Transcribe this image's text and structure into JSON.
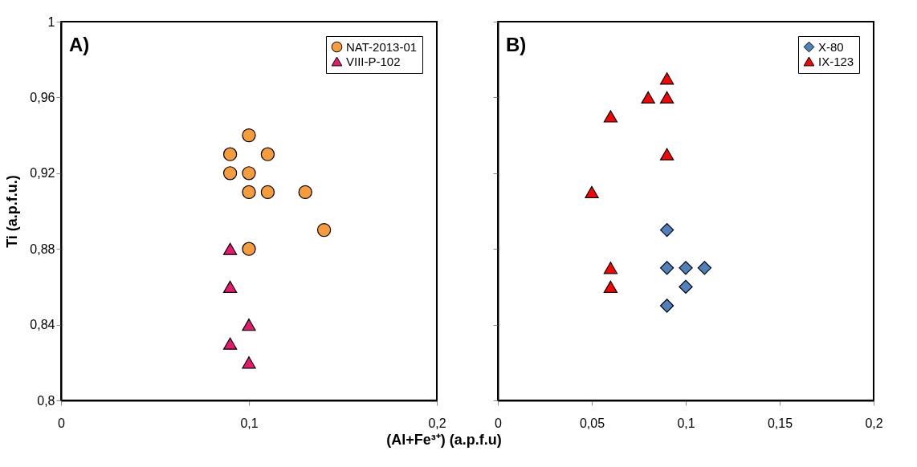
{
  "chart_data": [
    {
      "type": "scatter",
      "ylabel": "Ti (a.p.f.u.)",
      "annotations": [
        "A)"
      ],
      "xlim": [
        0,
        0.2
      ],
      "xticks": [
        0,
        {
          "value": 0.1,
          "label": "0,1"
        },
        {
          "value": 0.2,
          "label": "0,2"
        }
      ],
      "ylim": [
        0.8,
        1
      ],
      "yticks": [
        {
          "value": 0.8,
          "label": "0,8"
        },
        {
          "value": 0.84,
          "label": "0,84"
        },
        {
          "value": 0.88,
          "label": "0,88"
        },
        {
          "value": 0.92,
          "label": "0,92"
        },
        {
          "value": 0.96,
          "label": "0,96"
        },
        1
      ],
      "grid": false,
      "legend": "top right",
      "series": [
        {
          "name": "NAT-2013-01",
          "color": "#f79c3c",
          "marker": "circle",
          "x": [
            0.1,
            0.09,
            0.11,
            0.09,
            0.1,
            0.1,
            0.11,
            0.13,
            0.14,
            0.1
          ],
          "values": [
            0.94,
            0.93,
            0.93,
            0.92,
            0.92,
            0.91,
            0.91,
            0.91,
            0.89,
            0.88
          ]
        },
        {
          "name": "VIII-P-102",
          "color": "#e8186f",
          "marker": "triangle",
          "x": [
            0.09,
            0.09,
            0.1,
            0.09,
            0.1
          ],
          "values": [
            0.88,
            0.86,
            0.84,
            0.83,
            0.82
          ]
        }
      ]
    },
    {
      "type": "scatter",
      "xlabel": "(Al+Fe³⁺) (a.p.f.u)",
      "annotations": [
        "B)"
      ],
      "tick_labels": "x",
      "xlim": [
        0,
        0.2
      ],
      "xticks": [
        0,
        {
          "value": 0.05,
          "label": "0,05"
        },
        {
          "value": 0.1,
          "label": "0,1"
        },
        {
          "value": 0.15,
          "label": "0,15"
        },
        {
          "value": 0.2,
          "label": "0,2"
        }
      ],
      "ylim": [
        0.8,
        1
      ],
      "yticks": [
        {
          "value": 0.8,
          "label": null
        },
        {
          "value": 0.84,
          "label": null
        },
        {
          "value": 0.88,
          "label": null
        },
        {
          "value": 0.92,
          "label": null
        },
        {
          "value": 0.96,
          "label": null
        },
        {
          "value": 1,
          "label": null
        }
      ],
      "grid": false,
      "legend": "top right",
      "series": [
        {
          "name": "X-80",
          "color": "#4f81bd",
          "marker": "diamond",
          "x": [
            0.09,
            0.09,
            0.1,
            0.11,
            0.1,
            0.09
          ],
          "values": [
            0.89,
            0.87,
            0.87,
            0.87,
            0.86,
            0.85
          ]
        },
        {
          "name": "IX-123",
          "color": "#ff0000",
          "marker": "triangle",
          "x": [
            0.09,
            0.08,
            0.09,
            0.06,
            0.09,
            0.05,
            0.06,
            0.06
          ],
          "values": [
            0.97,
            0.96,
            0.96,
            0.95,
            0.93,
            0.91,
            0.87,
            0.86
          ]
        }
      ]
    }
  ]
}
